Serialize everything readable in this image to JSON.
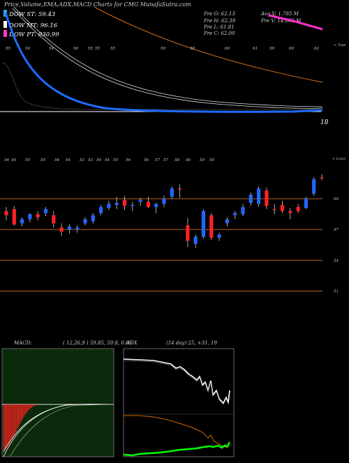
{
  "header": {
    "title": "Price,Volume,EMA,ADX,MACD Charts for CMG MunafaSutra.com",
    "dow_st": "DOW ST: 59.43",
    "dow_mt": "DOW MT: 96.16",
    "dow_pt": "DOW PT: 930.99",
    "prev_open": "Pre   O: 62.13",
    "prev_high": "Pre   H: 62.39",
    "prev_low": "Pre   L: 61.81",
    "prev_close": "Pre   C: 62.00",
    "avg_volume": "Avg V: 1.785  M",
    "prev_volume": "Pre   V: 14.066  M"
  },
  "colors": {
    "background": "#000000",
    "dow_st": "#2ea8ff",
    "dow_mt": "#ffffff",
    "dow_pt": "#ff33cc",
    "up_candle": "#2266ff",
    "down_candle": "#ff2222",
    "level_line": "#b8651f",
    "macd_panel": "#0b2a0b",
    "macd_hist": "#ff2222",
    "adx_line": "#ffffff",
    "plus_di": "#cc6600",
    "minus_di": "#00ff00",
    "ema_fast": "#1e6bff",
    "ema_slow": "#d06a10",
    "ema_long": "#ff33cc"
  },
  "chart_data": [
    {
      "type": "line",
      "title": "EMA panel",
      "x_tick_labels": [
        "55",
        "54",
        "54",
        "56",
        "55",
        "55",
        "55",
        "59",
        "58",
        "60",
        "61",
        "59",
        "60",
        "62"
      ],
      "right_label": "< Tops",
      "bottom_value": "18",
      "series": [
        {
          "name": "EMA fast",
          "values": [
            105,
            92,
            70,
            55,
            42,
            31,
            24,
            18,
            15,
            13,
            12,
            11.5,
            11,
            11.2,
            11.5,
            12
          ]
        },
        {
          "name": "EMA slow 1",
          "values": [
            135,
            115,
            92,
            76,
            63,
            52,
            44,
            38,
            33,
            29,
            26,
            24,
            22,
            20,
            18,
            17
          ]
        },
        {
          "name": "EMA slow 2",
          "values": [
            140,
            121,
            99,
            82,
            68,
            57,
            48,
            41,
            36,
            32,
            28,
            25,
            23,
            21,
            19,
            18
          ]
        },
        {
          "name": "EMA long",
          "values": [
            160,
            150,
            138,
            126,
            115,
            106,
            98,
            90,
            83,
            77,
            72,
            67,
            63,
            59,
            56,
            53
          ]
        },
        {
          "name": "EMA top",
          "values": [
            151,
            149,
            147,
            145,
            143,
            141,
            139,
            137
          ]
        }
      ]
    },
    {
      "type": "candlestick",
      "title": "Price panel",
      "y_ticks": [
        60,
        57,
        54,
        51
      ],
      "ylim": [
        49.6,
        63.2
      ],
      "right_label": "< Lows",
      "x_tick_labels": [
        "54",
        "54",
        "55",
        "55",
        "54",
        "54",
        "53",
        "53",
        "54",
        "54",
        "55",
        "56",
        "56",
        "57",
        "57",
        "58",
        "56",
        "59",
        "59"
      ],
      "candles": [
        {
          "o": 58.8,
          "h": 59.2,
          "l": 57.9,
          "c": 58.4
        },
        {
          "o": 59.0,
          "h": 59.3,
          "l": 57.4,
          "c": 57.5
        },
        {
          "o": 57.6,
          "h": 58.2,
          "l": 57.3,
          "c": 58.0
        },
        {
          "o": 58.0,
          "h": 58.6,
          "l": 57.7,
          "c": 58.5
        },
        {
          "o": 58.5,
          "h": 58.8,
          "l": 57.9,
          "c": 58.2
        },
        {
          "o": 58.6,
          "h": 59.2,
          "l": 58.3,
          "c": 59.0
        },
        {
          "o": 58.4,
          "h": 58.8,
          "l": 57.2,
          "c": 57.6
        },
        {
          "o": 57.2,
          "h": 57.6,
          "l": 56.4,
          "c": 56.8
        },
        {
          "o": 57.0,
          "h": 57.5,
          "l": 56.6,
          "c": 57.3
        },
        {
          "o": 57.0,
          "h": 57.4,
          "l": 56.7,
          "c": 57.2
        },
        {
          "o": 57.6,
          "h": 58.2,
          "l": 57.4,
          "c": 58.0
        },
        {
          "o": 57.8,
          "h": 58.6,
          "l": 57.6,
          "c": 58.4
        },
        {
          "o": 58.6,
          "h": 59.4,
          "l": 58.4,
          "c": 59.2
        },
        {
          "o": 59.1,
          "h": 59.8,
          "l": 58.9,
          "c": 59.5
        },
        {
          "o": 59.4,
          "h": 60.2,
          "l": 59.0,
          "c": 59.6
        },
        {
          "o": 59.9,
          "h": 60.3,
          "l": 58.9,
          "c": 59.3
        },
        {
          "o": 59.3,
          "h": 59.7,
          "l": 58.8,
          "c": 59.4
        },
        {
          "o": 59.7,
          "h": 60.1,
          "l": 59.3,
          "c": 59.9
        },
        {
          "o": 59.7,
          "h": 60.2,
          "l": 59.1,
          "c": 59.2
        },
        {
          "o": 59.2,
          "h": 59.6,
          "l": 58.6,
          "c": 59.5
        },
        {
          "o": 59.5,
          "h": 60.3,
          "l": 59.2,
          "c": 60.0
        },
        {
          "o": 60.2,
          "h": 61.2,
          "l": 60.0,
          "c": 61.0
        },
        {
          "o": 61.0,
          "h": 61.4,
          "l": 60.1,
          "c": 60.9
        },
        {
          "o": 57.4,
          "h": 58.1,
          "l": 55.3,
          "c": 55.9
        },
        {
          "o": 55.6,
          "h": 56.5,
          "l": 55.2,
          "c": 56.3
        },
        {
          "o": 56.3,
          "h": 59.0,
          "l": 56.1,
          "c": 58.8
        },
        {
          "o": 58.4,
          "h": 58.6,
          "l": 56.0,
          "c": 56.2
        },
        {
          "o": 56.2,
          "h": 56.7,
          "l": 55.9,
          "c": 56.5
        },
        {
          "o": 57.6,
          "h": 58.2,
          "l": 57.3,
          "c": 58.0
        },
        {
          "o": 58.4,
          "h": 58.8,
          "l": 58.0,
          "c": 58.6
        },
        {
          "o": 58.5,
          "h": 59.5,
          "l": 58.3,
          "c": 59.2
        },
        {
          "o": 59.6,
          "h": 60.6,
          "l": 59.3,
          "c": 60.4
        },
        {
          "o": 59.5,
          "h": 61.2,
          "l": 59.2,
          "c": 61.0
        },
        {
          "o": 60.8,
          "h": 61.1,
          "l": 59.0,
          "c": 59.3
        },
        {
          "o": 59.0,
          "h": 59.5,
          "l": 58.5,
          "c": 58.9
        },
        {
          "o": 59.4,
          "h": 59.8,
          "l": 58.6,
          "c": 58.8
        },
        {
          "o": 58.8,
          "h": 59.1,
          "l": 58.0,
          "c": 58.6
        },
        {
          "o": 59.2,
          "h": 59.5,
          "l": 58.6,
          "c": 58.8
        },
        {
          "o": 59.1,
          "h": 60.2,
          "l": 59.0,
          "c": 60.0
        },
        {
          "o": 60.5,
          "h": 62.1,
          "l": 60.3,
          "c": 61.9
        },
        {
          "o": 62.1,
          "h": 62.4,
          "l": 61.8,
          "c": 62.0
        }
      ]
    },
    {
      "type": "line",
      "title": "MACD",
      "label": "MACD:",
      "params": "( 12,26,9 ) 59.85,  59.8,  0.05",
      "series": [
        {
          "name": "MACD",
          "values": [
            0.1,
            0.22,
            0.38,
            0.52,
            0.63,
            0.72,
            0.79,
            0.84,
            0.88,
            0.91,
            0.93,
            0.95,
            0.96,
            0.97,
            0.97
          ]
        },
        {
          "name": "Signal",
          "values": [
            0.05,
            0.15,
            0.28,
            0.42,
            0.54,
            0.64,
            0.72,
            0.79,
            0.84,
            0.88,
            0.91,
            0.93,
            0.95,
            0.96,
            0.97
          ]
        },
        {
          "name": "Histogram",
          "values": [
            0.98,
            0.95,
            0.92,
            0.88,
            0.84,
            0.79,
            0.74,
            0.69,
            0.64,
            0.58,
            0.52,
            0.47,
            0.41,
            0.36,
            0.31,
            0.26,
            0.22,
            0.18,
            0.14,
            0.11,
            0.08,
            0.06,
            0.04,
            0.03,
            0.02
          ]
        }
      ]
    },
    {
      "type": "line",
      "title": "ADX",
      "label": "ADX",
      "params": "(14 day) 25, +31, 19",
      "series": [
        {
          "name": "ADX",
          "values": [
            95,
            95,
            94,
            94,
            93,
            93,
            92,
            92,
            92,
            90,
            89,
            88,
            85,
            80,
            76,
            72,
            68,
            64,
            60,
            55,
            50,
            44,
            38,
            33,
            40,
            32,
            22,
            18,
            25,
            35
          ]
        },
        {
          "name": "+DI",
          "values": [
            38,
            38,
            37,
            37,
            36,
            35,
            34,
            33,
            32,
            30,
            28,
            26,
            24,
            22,
            20,
            18,
            16,
            14,
            12,
            10,
            8,
            6,
            5,
            4,
            3,
            2
          ]
        },
        {
          "name": "-DI",
          "values": [
            3,
            2,
            3,
            2,
            4,
            4,
            5,
            6,
            7,
            7,
            8,
            9,
            9,
            10,
            11,
            10,
            12,
            12,
            11,
            13,
            13,
            14,
            15,
            14,
            16,
            17,
            18,
            17,
            22
          ]
        }
      ]
    }
  ]
}
